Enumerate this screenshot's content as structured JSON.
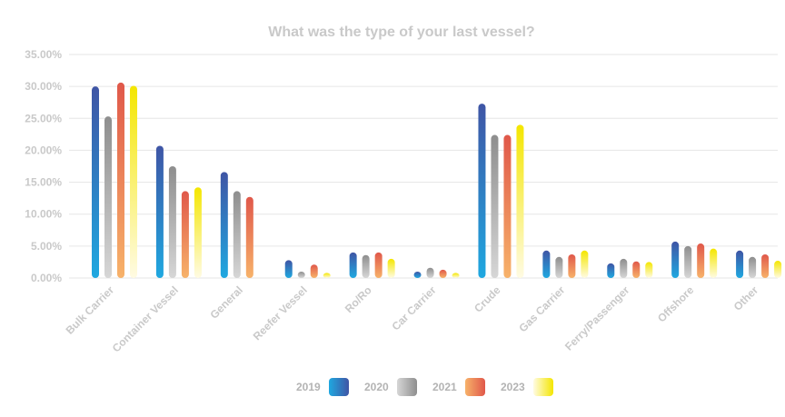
{
  "chart_data": {
    "type": "bar",
    "title": "What was the type of your last vessel?",
    "categories": [
      "Bulk Carrier",
      "Container Vessel",
      "General",
      "Reefer Vessel",
      "Ro/Ro",
      "Car Carrier",
      "Crude",
      "Gas Carrier",
      "Ferry/Passenger",
      "Offshore",
      "Other"
    ],
    "series": [
      {
        "name": "2019",
        "values": [
          30.0,
          20.7,
          16.6,
          2.8,
          4.0,
          1.0,
          27.3,
          4.3,
          2.3,
          5.7,
          4.3
        ]
      },
      {
        "name": "2020",
        "values": [
          25.3,
          17.5,
          13.6,
          1.0,
          3.6,
          1.6,
          22.4,
          3.3,
          3.0,
          5.0,
          3.3
        ]
      },
      {
        "name": "2021",
        "values": [
          30.6,
          13.6,
          12.7,
          2.1,
          4.0,
          1.3,
          22.4,
          3.7,
          2.6,
          5.4,
          3.7
        ]
      },
      {
        "name": "2023",
        "values": [
          30.1,
          14.2,
          0,
          0.8,
          3.0,
          0.8,
          24.0,
          4.3,
          2.5,
          4.6,
          2.7
        ]
      }
    ],
    "yticks": [
      "0.00%",
      "5.00%",
      "10.00%",
      "15.00%",
      "20.00%",
      "25.00%",
      "30.00%",
      "35.00%"
    ],
    "ylim": [
      0,
      35
    ],
    "xlabel": "",
    "ylabel": "",
    "grid": true,
    "legend_position": "bottom",
    "colors": {
      "2019": [
        "#3f55a5",
        "#1fa8e0"
      ],
      "2020": [
        "#8e8e8e",
        "#d6d6d6"
      ],
      "2021": [
        "#e0584a",
        "#f7b26a"
      ],
      "2023": [
        "#f4e600",
        "#fffbe3"
      ]
    }
  }
}
